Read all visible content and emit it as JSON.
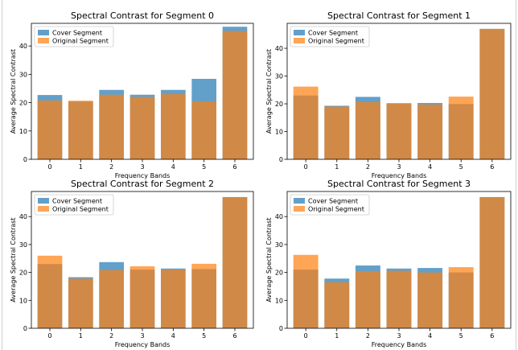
{
  "chart_data": [
    {
      "type": "bar",
      "title": "Spectral Contrast for Segment 0",
      "xlabel": "Frequency Bands",
      "ylabel": "Average Spectral Contrast",
      "categories": [
        "0",
        "1",
        "2",
        "3",
        "4",
        "5",
        "6"
      ],
      "yticks": [
        0,
        10,
        20,
        30,
        40
      ],
      "ylim": [
        0,
        48
      ],
      "legend": "top-left",
      "series": [
        {
          "name": "Cover Segment",
          "color": "#1f77b4",
          "values": [
            22.7,
            20.4,
            24.5,
            22.8,
            24.5,
            28.4,
            46.8
          ]
        },
        {
          "name": "Original Segment",
          "color": "#ff7f0e",
          "values": [
            20.8,
            20.7,
            22.8,
            22.0,
            23.0,
            20.5,
            45.3
          ]
        }
      ]
    },
    {
      "type": "bar",
      "title": "Spectral Contrast for Segment 1",
      "xlabel": "Frequency Bands",
      "ylabel": "Average Spectral Contrast",
      "categories": [
        "0",
        "1",
        "2",
        "3",
        "4",
        "5",
        "6"
      ],
      "yticks": [
        0,
        10,
        20,
        30,
        40
      ],
      "ylim": [
        0,
        49
      ],
      "legend": "top-left",
      "series": [
        {
          "name": "Cover Segment",
          "color": "#1f77b4",
          "values": [
            23.0,
            19.3,
            22.5,
            20.2,
            20.3,
            19.9,
            47.0
          ]
        },
        {
          "name": "Original Segment",
          "color": "#ff7f0e",
          "values": [
            26.2,
            19.0,
            20.6,
            20.2,
            19.8,
            22.6,
            47.0
          ]
        }
      ]
    },
    {
      "type": "bar",
      "title": "Spectral Contrast for Segment 2",
      "xlabel": "Frequency Bands",
      "ylabel": "Average Spectral Contrast",
      "categories": [
        "0",
        "1",
        "2",
        "3",
        "4",
        "5",
        "6"
      ],
      "yticks": [
        0,
        10,
        20,
        30,
        40
      ],
      "ylim": [
        0,
        49
      ],
      "legend": "top-left",
      "series": [
        {
          "name": "Cover Segment",
          "color": "#1f77b4",
          "values": [
            23.0,
            18.3,
            23.7,
            21.0,
            21.4,
            21.2,
            47.0
          ]
        },
        {
          "name": "Original Segment",
          "color": "#ff7f0e",
          "values": [
            26.0,
            17.8,
            20.9,
            22.2,
            21.0,
            23.1,
            47.0
          ]
        }
      ]
    },
    {
      "type": "bar",
      "title": "Spectral Contrast for Segment 3",
      "xlabel": "Frequency Bands",
      "ylabel": "Average Spectral Contrast",
      "categories": [
        "0",
        "1",
        "2",
        "3",
        "4",
        "5",
        "6"
      ],
      "yticks": [
        0,
        10,
        20,
        30,
        40
      ],
      "ylim": [
        0,
        49
      ],
      "legend": "top-left",
      "series": [
        {
          "name": "Cover Segment",
          "color": "#1f77b4",
          "values": [
            21.0,
            17.8,
            22.5,
            21.4,
            21.6,
            20.0,
            47.0
          ]
        },
        {
          "name": "Original Segment",
          "color": "#ff7f0e",
          "values": [
            26.3,
            16.5,
            20.5,
            20.6,
            20.0,
            21.9,
            47.0
          ]
        }
      ]
    }
  ]
}
